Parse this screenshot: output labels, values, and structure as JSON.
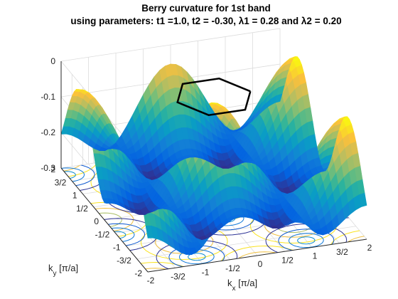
{
  "figure": {
    "title_line1": "Berry curvature for 1st band",
    "title_line2": "using parameters: t1 =1.0, t2 = -0.30, λ1 = 0.28 and λ2 = 0.20"
  },
  "chart_data": {
    "type": "surface",
    "title": "Berry curvature for 1st band",
    "subtitle": "using parameters: t1 =1.0, t2 = -0.30, λ1 = 0.28 and λ2 = 0.20",
    "parameters": {
      "t1": 1.0,
      "t2": -0.3,
      "lambda1": 0.28,
      "lambda2": 0.2
    },
    "xlabel": "k_x [π/a]",
    "ylabel": "k_y [π/a]",
    "xlim": [
      -2,
      2
    ],
    "ylim": [
      -2,
      2
    ],
    "zlim": [
      -0.3,
      0
    ],
    "x_ticks": [
      "-2",
      "-3/2",
      "-1",
      "-1/2",
      "0",
      "1/2",
      "1",
      "3/2",
      "2"
    ],
    "y_ticks": [
      "-2",
      "-3/2",
      "-1",
      "-1/2",
      "0",
      "1/2",
      "1",
      "3/2",
      "2"
    ],
    "z_ticks": [
      "-0.3",
      "-0.2",
      "-0.1",
      "0"
    ],
    "surface_range": {
      "min": -0.3,
      "max": -0.02
    },
    "colormap": "parula",
    "contour_projection": "floor",
    "brillouin_zone": "hexagon outline",
    "grid": true
  }
}
